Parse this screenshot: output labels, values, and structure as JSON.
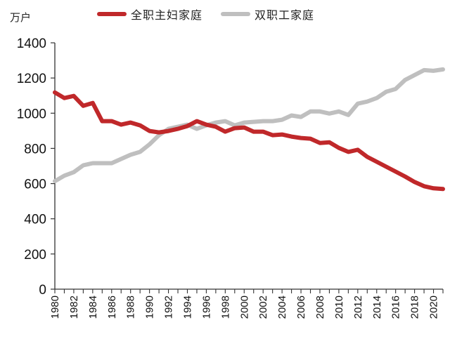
{
  "chart_data": {
    "type": "line",
    "title": "",
    "xlabel": "",
    "ylabel": "万户",
    "ylim": [
      0,
      1400
    ],
    "yticks": [
      0,
      200,
      400,
      600,
      800,
      1000,
      1200,
      1400
    ],
    "xtick_labels": [
      "1980",
      "1982",
      "1984",
      "1986",
      "1988",
      "1990",
      "1992",
      "1994",
      "1996",
      "1998",
      "2000",
      "2002",
      "2004",
      "2006",
      "2008",
      "2010",
      "2012",
      "2014",
      "2016",
      "2018",
      "2020"
    ],
    "grid": false,
    "legend_position": "top",
    "x": [
      1980,
      1981,
      1982,
      1983,
      1984,
      1985,
      1986,
      1987,
      1988,
      1989,
      1990,
      1991,
      1992,
      1993,
      1994,
      1995,
      1996,
      1997,
      1998,
      1999,
      2000,
      2001,
      2002,
      2003,
      2004,
      2005,
      2006,
      2007,
      2008,
      2009,
      2010,
      2011,
      2012,
      2013,
      2014,
      2015,
      2016,
      2017,
      2018,
      2019,
      2020,
      2021
    ],
    "series": [
      {
        "name": "全职主妇家庭",
        "color": "#c0282a",
        "values": [
          1118,
          1086,
          1098,
          1042,
          1058,
          955,
          955,
          935,
          947,
          931,
          899,
          891,
          899,
          911,
          927,
          955,
          935,
          923,
          895,
          915,
          919,
          895,
          895,
          875,
          879,
          867,
          859,
          855,
          831,
          835,
          803,
          780,
          792,
          752,
          724,
          696,
          668,
          640,
          609,
          585,
          573,
          569
        ]
      },
      {
        "name": "双职工家庭",
        "color": "#bfbfbf",
        "values": [
          614,
          645,
          665,
          704,
          716,
          716,
          716,
          740,
          764,
          780,
          823,
          875,
          911,
          923,
          935,
          911,
          931,
          947,
          955,
          931,
          947,
          951,
          955,
          955,
          963,
          987,
          979,
          1010,
          1010,
          998,
          1010,
          990,
          1054,
          1066,
          1086,
          1122,
          1138,
          1189,
          1217,
          1245,
          1241,
          1249
        ]
      }
    ]
  },
  "labels": {
    "unit": "万户",
    "legend": [
      "全职主妇家庭",
      "双职工家庭"
    ]
  }
}
